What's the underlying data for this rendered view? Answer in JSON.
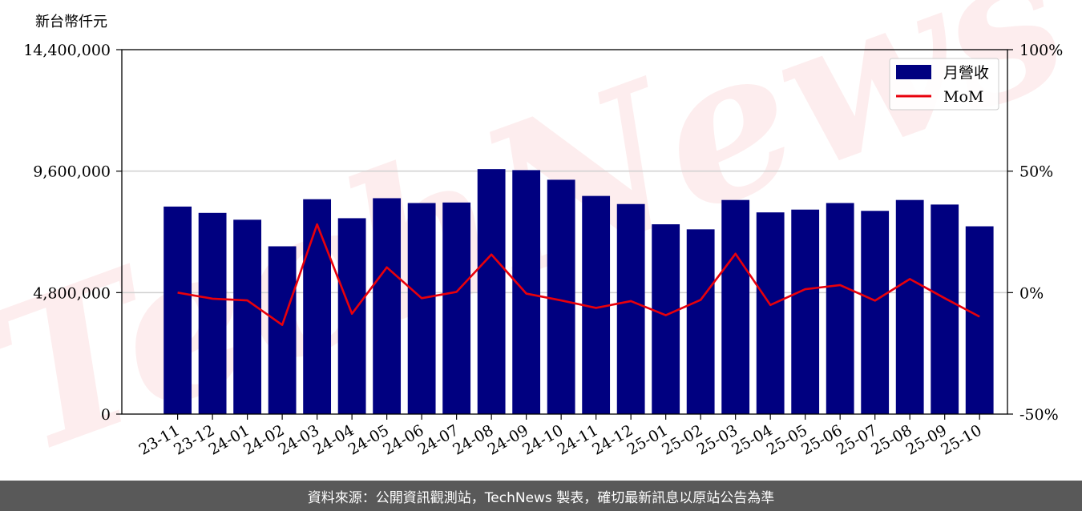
{
  "chart_data": {
    "type": "bar",
    "title": "",
    "ylabel": "新台幣仟元",
    "xlabel": "",
    "categories": [
      "23-11",
      "23-12",
      "24-01",
      "24-02",
      "24-03",
      "24-04",
      "24-05",
      "24-06",
      "24-07",
      "24-08",
      "24-09",
      "24-10",
      "24-11",
      "24-12",
      "25-01",
      "25-02",
      "25-03",
      "25-04",
      "25-05",
      "25-06",
      "25-07",
      "25-08",
      "25-09",
      "25-10"
    ],
    "series": [
      {
        "name": "月營收",
        "axis": "left",
        "type": "bar",
        "color": "#000080",
        "values": [
          8200000,
          7950000,
          7680000,
          6630000,
          8490000,
          7740000,
          8530000,
          8340000,
          8360000,
          9680000,
          9640000,
          9260000,
          8620000,
          8300000,
          7500000,
          7300000,
          8460000,
          7970000,
          8080000,
          8340000,
          8030000,
          8460000,
          8280000,
          7420000
        ]
      },
      {
        "name": "MoM",
        "axis": "right",
        "type": "line",
        "color": "#e8000b",
        "values": [
          0.0,
          -2.5,
          -3.2,
          -13.3,
          28.1,
          -8.7,
          10.4,
          -2.3,
          0.3,
          15.7,
          -0.4,
          -3.2,
          -6.3,
          -3.5,
          -9.3,
          -3.0,
          16.0,
          -5.1,
          1.4,
          3.1,
          -3.3,
          5.6,
          -2.3,
          -9.9
        ]
      }
    ],
    "y_left": {
      "ylim": [
        0,
        14400000
      ],
      "ticks": [
        0,
        4800000,
        9600000,
        14400000
      ],
      "tick_labels": [
        "0",
        "4,800,000",
        "9,600,000",
        "14,400,000"
      ]
    },
    "y_right": {
      "ylim": [
        -50,
        100
      ],
      "ticks": [
        -50,
        0,
        50,
        100
      ],
      "tick_labels": [
        "-50%",
        "0%",
        "50%",
        "100%"
      ]
    },
    "grid": "horizontal",
    "legend": {
      "placement": "top-right",
      "entries": [
        "月營收",
        "MoM"
      ]
    },
    "watermark": "TechNews"
  },
  "footer": {
    "text": "資料來源：公開資訊觀測站，TechNews 製表，確切最新訊息以原站公告為準"
  }
}
